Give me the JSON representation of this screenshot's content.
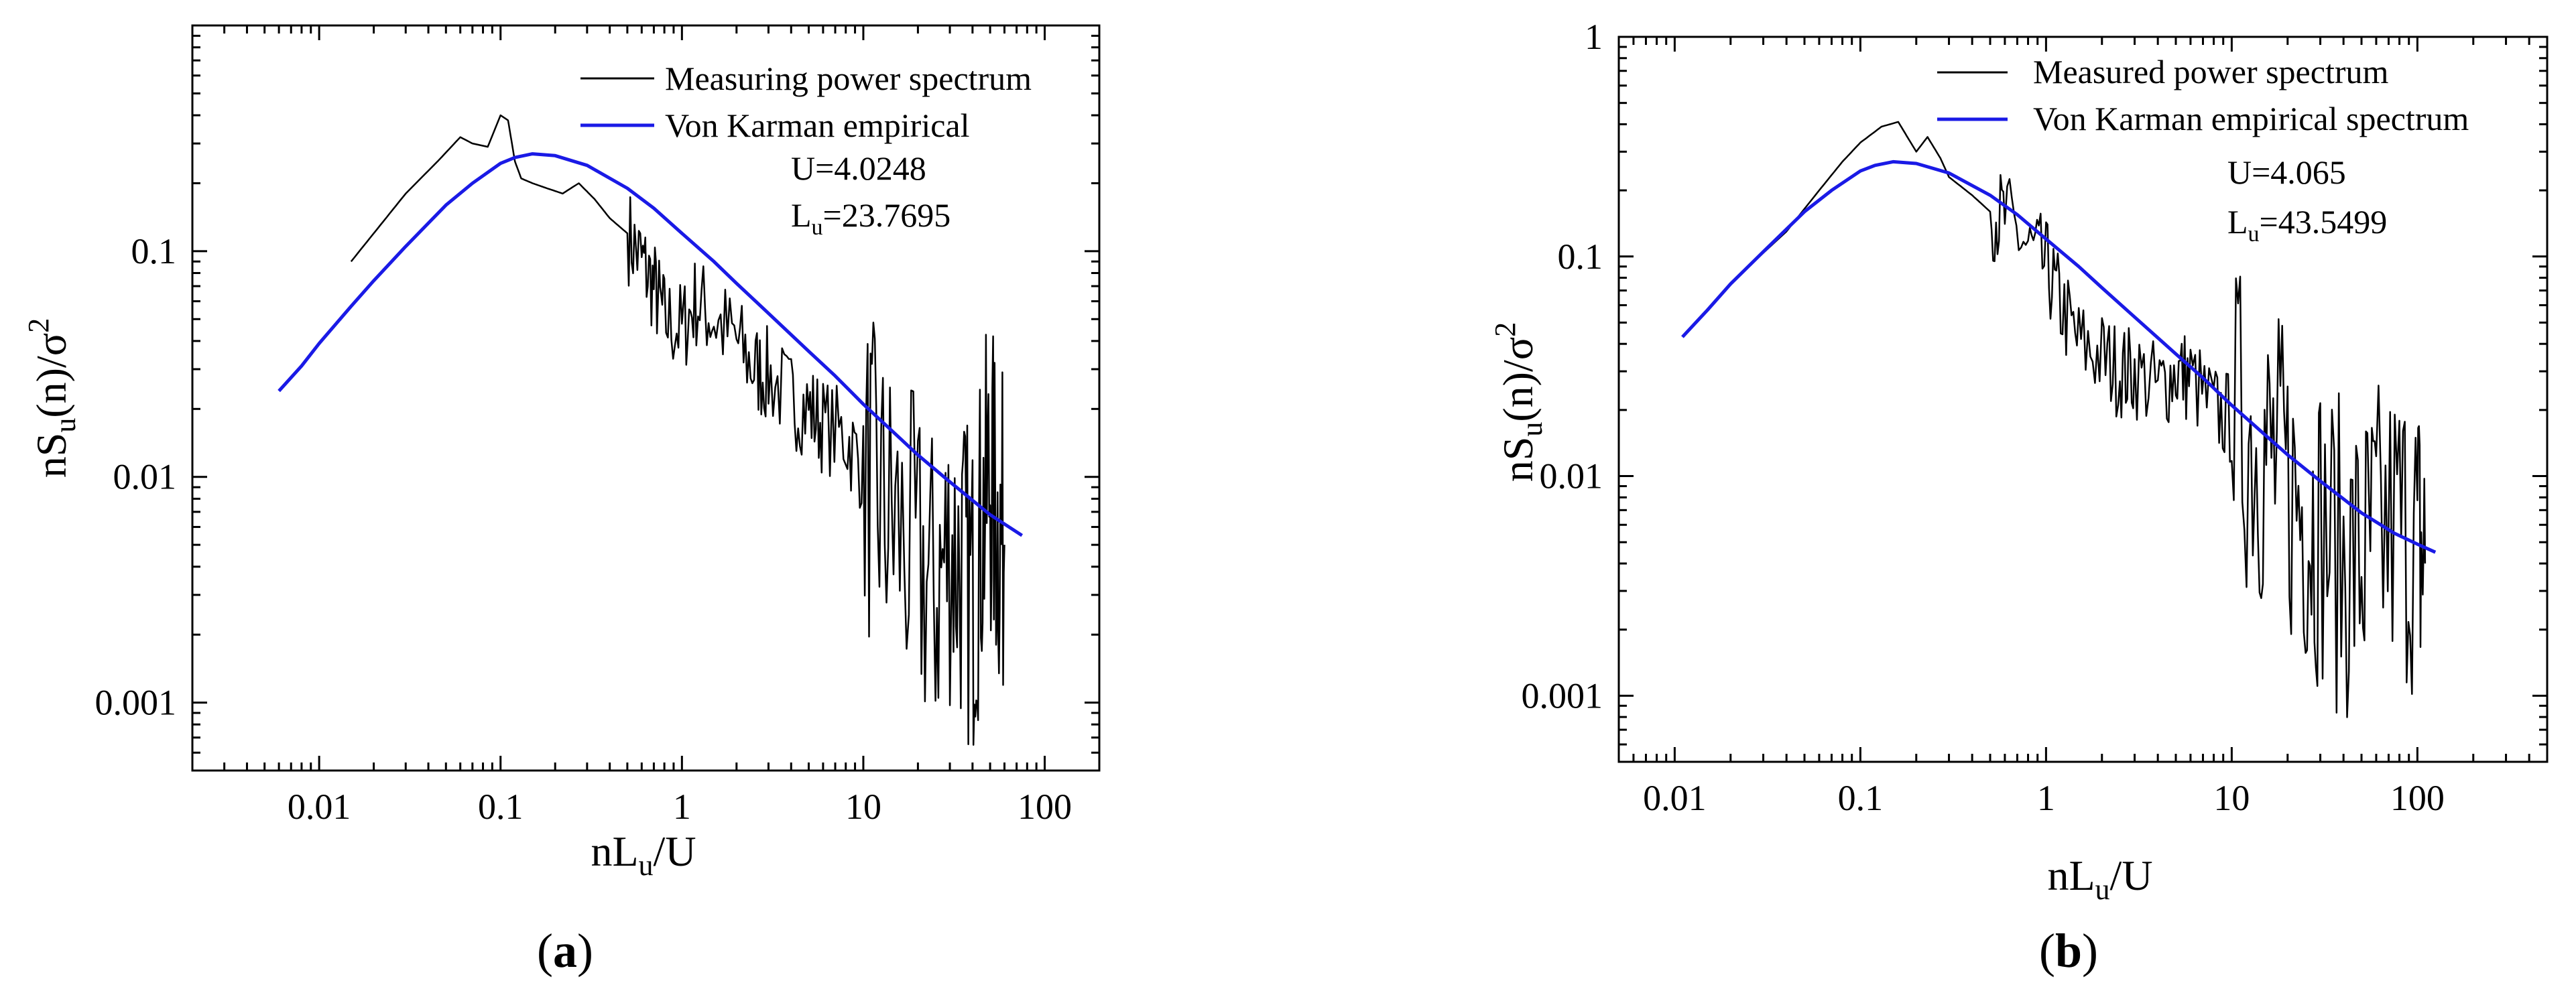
{
  "colors": {
    "measured": "#000000",
    "empirical": "#1a1ae6",
    "axis": "#000000"
  },
  "chart_data": [
    {
      "type": "line",
      "panel_label": "a",
      "xlabel": "nL_u/U",
      "ylabel": "nS_u(n)/σ²",
      "xscale": "log",
      "yscale": "log",
      "xlim": [
        0.002,
        200
      ],
      "ylim": [
        0.0005,
        1
      ],
      "xticks": [
        0.01,
        0.1,
        1,
        10,
        100
      ],
      "xtick_labels": [
        "0.01",
        "0.1",
        "1",
        "10",
        "100"
      ],
      "yticks": [
        0.001,
        0.01,
        0.1
      ],
      "ytick_labels": [
        "0.001",
        "0.01",
        "0.1"
      ],
      "legend": {
        "position": "top-right",
        "entries": [
          "Measuring power spectrum",
          "Von Karman empirical"
        ]
      },
      "annotations": {
        "U": "U=4.0248",
        "Lu": "23.7695"
      },
      "series": [
        {
          "name": "Measuring power spectrum",
          "style": "noisy",
          "x": [
            0.015,
            0.02,
            0.03,
            0.045,
            0.06,
            0.07,
            0.085,
            0.1,
            0.11,
            0.12,
            0.13,
            0.15,
            0.18,
            0.22,
            0.27,
            0.33,
            0.4,
            0.5,
            0.6,
            0.7,
            0.8,
            1.0,
            1.2,
            1.5,
            2.0,
            2.5,
            3.0,
            4.0,
            5.0,
            6.0,
            8.0,
            10.0,
            12.0,
            15.0,
            20.0,
            25.0,
            30.0,
            35.0,
            40.0,
            45.0,
            50.0,
            55.0,
            60.0
          ],
          "y": [
            0.09,
            0.12,
            0.18,
            0.25,
            0.32,
            0.3,
            0.29,
            0.4,
            0.38,
            0.25,
            0.21,
            0.2,
            0.19,
            0.18,
            0.2,
            0.17,
            0.14,
            0.12,
            0.09,
            0.07,
            0.05,
            0.045,
            0.06,
            0.05,
            0.04,
            0.03,
            0.028,
            0.022,
            0.02,
            0.017,
            0.015,
            0.011,
            0.008,
            0.006,
            0.004,
            0.003,
            0.005,
            0.004,
            0.003,
            0.006,
            0.01,
            0.006,
            0.005
          ],
          "noise_from_x": 0.5
        },
        {
          "name": "Von Karman empirical",
          "style": "smooth",
          "x": [
            0.006,
            0.008,
            0.01,
            0.015,
            0.02,
            0.03,
            0.05,
            0.07,
            0.1,
            0.12,
            0.15,
            0.2,
            0.3,
            0.5,
            0.7,
            1.0,
            1.5,
            2.0,
            3.0,
            5.0,
            7.0,
            10.0,
            15.0,
            20.0,
            30.0,
            50.0,
            75.0
          ],
          "y": [
            0.024,
            0.031,
            0.039,
            0.057,
            0.074,
            0.105,
            0.16,
            0.2,
            0.245,
            0.26,
            0.27,
            0.265,
            0.24,
            0.19,
            0.155,
            0.12,
            0.09,
            0.072,
            0.053,
            0.036,
            0.028,
            0.021,
            0.0155,
            0.0125,
            0.0095,
            0.0068,
            0.0055
          ]
        }
      ]
    },
    {
      "type": "line",
      "panel_label": "b",
      "xlabel": "nL_u/U",
      "ylabel": "nS_u(n)/σ²",
      "xscale": "log",
      "yscale": "log",
      "xlim": [
        0.005,
        500
      ],
      "ylim": [
        0.0005,
        1
      ],
      "xticks": [
        0.01,
        0.1,
        1,
        10,
        100
      ],
      "xtick_labels": [
        "0.01",
        "0.1",
        "1",
        "10",
        "100"
      ],
      "yticks": [
        0.001,
        0.01,
        0.1,
        1
      ],
      "ytick_labels": [
        "0.001",
        "0.01",
        "0.1",
        "1"
      ],
      "legend": {
        "position": "top-right",
        "entries": [
          "Measured power spectrum",
          "Von Karman empirical spectrum"
        ]
      },
      "annotations": {
        "U": "U=4.065",
        "Lu": "43.5499"
      },
      "series": [
        {
          "name": "Measured power spectrum",
          "style": "noisy",
          "x": [
            0.025,
            0.04,
            0.06,
            0.08,
            0.1,
            0.13,
            0.16,
            0.2,
            0.23,
            0.27,
            0.3,
            0.4,
            0.5,
            0.6,
            0.8,
            1.0,
            1.2,
            1.5,
            2.0,
            2.5,
            3.0,
            4.0,
            5.0,
            6.0,
            8.0,
            10.0,
            13.0,
            16.0,
            20.0,
            25.0,
            30.0,
            40.0,
            50.0,
            60.0,
            80.0,
            100.0,
            110.0
          ],
          "y": [
            0.09,
            0.13,
            0.2,
            0.27,
            0.33,
            0.39,
            0.41,
            0.3,
            0.35,
            0.28,
            0.23,
            0.19,
            0.16,
            0.15,
            0.11,
            0.09,
            0.06,
            0.04,
            0.035,
            0.03,
            0.03,
            0.025,
            0.03,
            0.028,
            0.02,
            0.018,
            0.015,
            0.012,
            0.009,
            0.007,
            0.006,
            0.004,
            0.004,
            0.005,
            0.006,
            0.005,
            0.004
          ],
          "noise_from_x": 0.5
        },
        {
          "name": "Von Karman empirical spectrum",
          "style": "smooth",
          "x": [
            0.011,
            0.015,
            0.02,
            0.03,
            0.05,
            0.07,
            0.1,
            0.12,
            0.15,
            0.2,
            0.3,
            0.5,
            0.7,
            1.0,
            1.5,
            2.0,
            3.0,
            5.0,
            7.0,
            10.0,
            15.0,
            20.0,
            30.0,
            50.0,
            75.0,
            100.0,
            125.0
          ],
          "y": [
            0.043,
            0.057,
            0.075,
            0.105,
            0.16,
            0.2,
            0.245,
            0.26,
            0.27,
            0.265,
            0.24,
            0.19,
            0.155,
            0.12,
            0.09,
            0.072,
            0.053,
            0.036,
            0.028,
            0.021,
            0.0155,
            0.0125,
            0.0095,
            0.0068,
            0.0055,
            0.0049,
            0.0045
          ]
        }
      ]
    }
  ]
}
